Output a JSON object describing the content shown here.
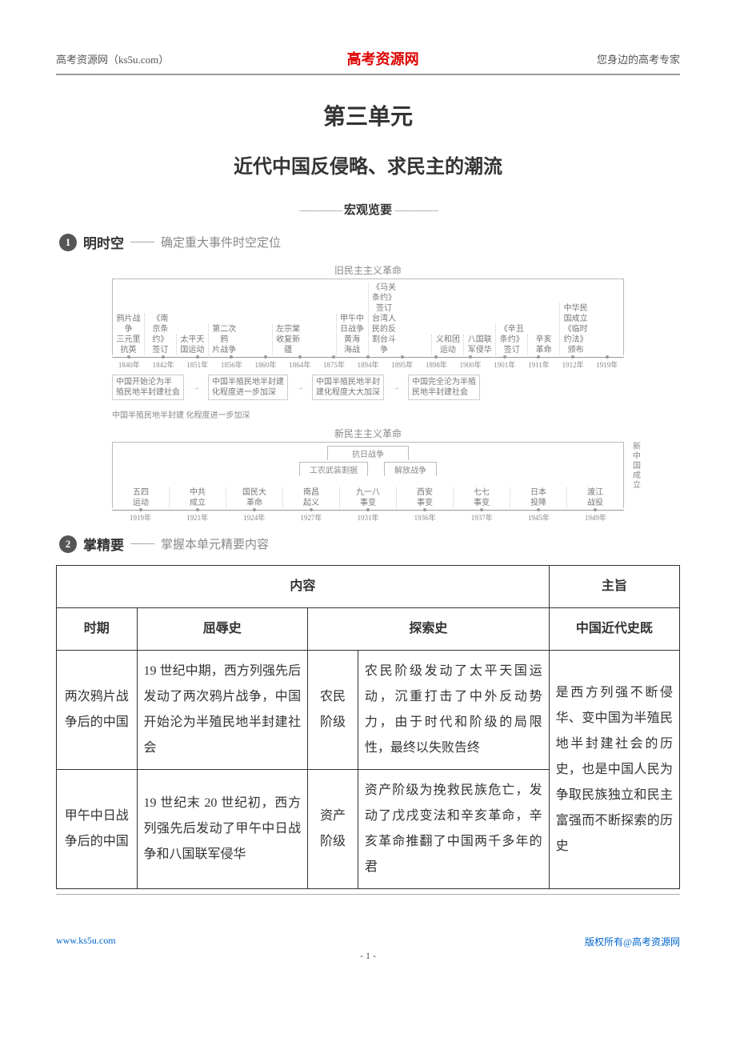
{
  "header": {
    "left": "高考资源网（ks5u.com）",
    "brand": "高考资源网",
    "right": "您身边的高考专家"
  },
  "unit": {
    "title": "第三单元",
    "subtitle": "近代中国反侵略、求民主的潮流"
  },
  "macro": {
    "dash": "————",
    "label": "宏观览要"
  },
  "section1": {
    "num": "1",
    "title": "明时空",
    "dash": "——",
    "sub": "确定重大事件时空定位"
  },
  "timeline1": {
    "heading": "旧民主主义革命",
    "events": [
      "鸦片战争\n三元里抗英",
      "《南\n京条\n约》\n签订",
      "太平天国运动",
      "第二次鸦\n片战争",
      "",
      "左宗棠\n收复新\n疆",
      "",
      "甲午中\n日战争\n黄海\n海战",
      "《马关\n条约》\n签订\n台湾人\n民的反\n割台斗\n争",
      "",
      "义和团运动",
      "八国联\n军侵华",
      "《辛丑\n条约》\n签订",
      "辛亥\n革命",
      "中华民\n国成立\n《临时\n约法》\n颁布",
      ""
    ],
    "years": [
      "1840年",
      "1842年",
      "1851年",
      "1856年",
      "1860年",
      "1864年",
      "1875年",
      "1894年",
      "1895年",
      "1898年",
      "1900年",
      "1901年",
      "1911年",
      "1912年",
      "1919年"
    ],
    "notes": [
      "中国开始沦为半\n殖民地半封建社会",
      "中国半殖民地半封建\n化程度进一步加深",
      "中国半殖民地半封\n建化程度大大加深",
      "中国完全沦为半殖\n民地半封建社会"
    ],
    "extra_note": "中国半殖民地半封建\n化程度进一步加深"
  },
  "timeline2": {
    "heading": "新民主主义革命",
    "bracket1": "抗日战争",
    "bracket2": "工农武装割据",
    "bracket3": "解放战争",
    "right_label": "新\n中\n国\n成\n立",
    "events": [
      "五四\n运动",
      "中共\n成立",
      "国民大\n革命",
      "南昌\n起义",
      "九一八\n事变",
      "西安\n事变",
      "七七\n事变",
      "日本\n投降",
      "渡江\n战役"
    ],
    "years": [
      "1919年",
      "1921年",
      "1924年",
      "1927年",
      "1931年",
      "1936年",
      "1937年",
      "1945年",
      "1949年"
    ]
  },
  "section2": {
    "num": "2",
    "title": "掌精要",
    "dash": "——",
    "sub": "掌握本单元精要内容"
  },
  "table": {
    "h_content": "内容",
    "h_theme": "主旨",
    "h_period": "时期",
    "h_humil": "屈辱史",
    "h_explore": "探索史",
    "theme_top": "中国近代史既",
    "rows": [
      {
        "period": "两次鸦片战争后的中国",
        "humil": "19 世纪中期，西方列强先后发动了两次鸦片战争，中国开始沦为半殖民地半封建社会",
        "class": "农民阶级",
        "explore": "农民阶级发动了太平天国运动，沉重打击了中外反动势力，由于时代和阶级的局限性，最终以失败告终",
        "theme": "是西方列强不断侵华、变中国为半殖民地半封建社会的历史，也是中"
      },
      {
        "period": "甲午中日战争后的中国",
        "humil": "19 世纪末 20 世纪初，西方列强先后发动了甲午中日战争和八国联军侵华",
        "class": "资产阶级",
        "explore": "资产阶级为挽救民族危亡，发动了戊戌变法和辛亥革命，辛亥革命推翻了中国两千多年的君",
        "theme": "国人民为争取民族独立和民主富强而不断探索的历史"
      }
    ]
  },
  "footer": {
    "left": "www.ks5u.com",
    "right": "版权所有@高考资源网",
    "page": "- 1 -"
  }
}
